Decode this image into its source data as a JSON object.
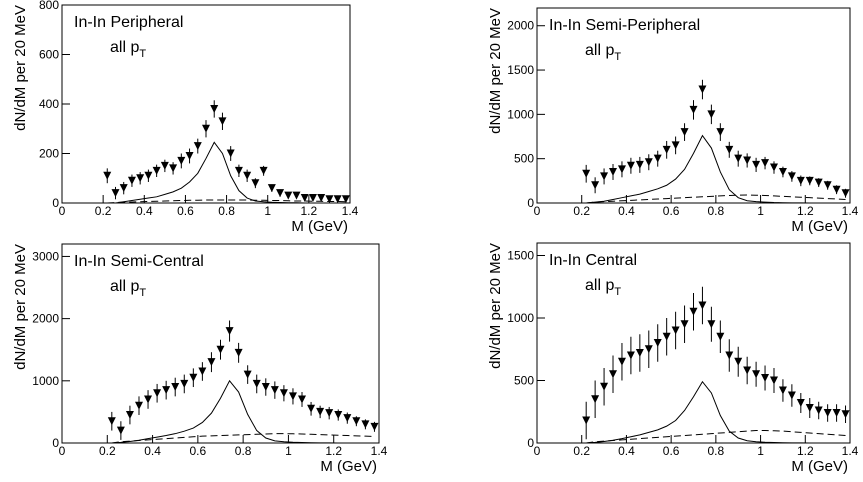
{
  "chart_data": [
    {
      "type": "scatter",
      "title": "In-In Peripheral",
      "subtitle": "all p",
      "subtitle_sub": "T",
      "ylabel": "dN/dM per 20 MeV",
      "xlabel": "M (GeV)",
      "xlim": [
        0,
        1.4
      ],
      "xticks": [
        0,
        0.2,
        0.4,
        0.6,
        0.8,
        1,
        1.2,
        1.4
      ],
      "ylim": [
        0,
        800
      ],
      "yticks": [
        0,
        200,
        400,
        600,
        800
      ],
      "x": [
        0.22,
        0.26,
        0.3,
        0.34,
        0.38,
        0.42,
        0.46,
        0.5,
        0.54,
        0.58,
        0.62,
        0.66,
        0.7,
        0.74,
        0.78,
        0.82,
        0.86,
        0.9,
        0.94,
        0.98,
        1.02,
        1.06,
        1.1,
        1.14,
        1.18,
        1.22,
        1.26,
        1.3,
        1.34,
        1.38
      ],
      "series": [
        {
          "style": "markers",
          "color": "#000000",
          "values": [
            110,
            40,
            60,
            90,
            100,
            110,
            130,
            150,
            140,
            170,
            190,
            230,
            300,
            380,
            330,
            200,
            130,
            110,
            80,
            130,
            60,
            40,
            30,
            30,
            20,
            20,
            20,
            15,
            15,
            15
          ],
          "errors": [
            30,
            25,
            25,
            25,
            25,
            25,
            25,
            25,
            25,
            30,
            30,
            30,
            35,
            35,
            35,
            30,
            25,
            25,
            20,
            20,
            15,
            15,
            12,
            12,
            10,
            10,
            10,
            8,
            8,
            8
          ]
        },
        {
          "style": "solid",
          "color": "#000000",
          "values": [
            0,
            0,
            5,
            10,
            15,
            20,
            25,
            35,
            45,
            60,
            85,
            120,
            180,
            245,
            200,
            110,
            50,
            20,
            8,
            5,
            3,
            2,
            1,
            1,
            0,
            0,
            0,
            0,
            0,
            0
          ]
        },
        {
          "style": "dashed",
          "color": "#000000",
          "values": [
            0,
            2,
            3,
            4,
            5,
            6,
            7,
            8,
            9,
            10,
            11,
            11,
            12,
            12,
            12,
            12,
            12,
            12,
            11,
            11,
            10,
            10,
            9,
            8,
            8,
            7,
            7,
            6,
            6,
            5
          ]
        }
      ]
    },
    {
      "type": "scatter",
      "title": "In-In Semi-Peripheral",
      "subtitle": "all p",
      "subtitle_sub": "T",
      "ylabel": "dN/dM per 20 MeV",
      "xlabel": "M (GeV)",
      "xlim": [
        0,
        1.4
      ],
      "xticks": [
        0,
        0.2,
        0.4,
        0.6,
        0.8,
        1,
        1.2,
        1.4
      ],
      "ylim": [
        0,
        2200
      ],
      "yticks": [
        0,
        500,
        1000,
        1500,
        2000
      ],
      "x": [
        0.22,
        0.26,
        0.3,
        0.34,
        0.38,
        0.42,
        0.46,
        0.5,
        0.54,
        0.58,
        0.62,
        0.66,
        0.7,
        0.74,
        0.78,
        0.82,
        0.86,
        0.9,
        0.94,
        0.98,
        1.02,
        1.06,
        1.1,
        1.14,
        1.18,
        1.22,
        1.26,
        1.3,
        1.34,
        1.38
      ],
      "series": [
        {
          "style": "markers",
          "color": "#000000",
          "values": [
            330,
            200,
            300,
            350,
            380,
            420,
            430,
            460,
            500,
            600,
            650,
            800,
            1050,
            1280,
            1000,
            800,
            600,
            500,
            480,
            430,
            450,
            400,
            350,
            300,
            250,
            250,
            230,
            200,
            150,
            110
          ],
          "errors": [
            100,
            90,
            90,
            90,
            90,
            90,
            90,
            90,
            90,
            100,
            100,
            100,
            110,
            110,
            110,
            100,
            90,
            90,
            80,
            80,
            70,
            70,
            60,
            60,
            60,
            50,
            50,
            50,
            50,
            50
          ]
        },
        {
          "style": "solid",
          "color": "#000000",
          "values": [
            0,
            10,
            20,
            40,
            60,
            80,
            100,
            130,
            160,
            200,
            270,
            380,
            560,
            760,
            620,
            350,
            150,
            60,
            25,
            15,
            10,
            5,
            3,
            2,
            1,
            0,
            0,
            0,
            0,
            0
          ]
        },
        {
          "style": "dashed",
          "color": "#000000",
          "values": [
            0,
            10,
            15,
            20,
            25,
            30,
            35,
            40,
            45,
            50,
            55,
            60,
            65,
            70,
            75,
            80,
            85,
            88,
            90,
            88,
            85,
            80,
            75,
            70,
            65,
            60,
            55,
            50,
            45,
            40
          ]
        }
      ]
    },
    {
      "type": "scatter",
      "title": "In-In Semi-Central",
      "subtitle": "all p",
      "subtitle_sub": "T",
      "ylabel": "dN/dM per 20 MeV",
      "xlabel": "M (GeV)",
      "xlim": [
        0,
        1.4
      ],
      "xticks": [
        0,
        0.2,
        0.4,
        0.6,
        0.8,
        1,
        1.2,
        1.4
      ],
      "ylim": [
        0,
        3200
      ],
      "yticks": [
        0,
        1000,
        2000,
        3000
      ],
      "x": [
        0.22,
        0.26,
        0.3,
        0.34,
        0.38,
        0.42,
        0.46,
        0.5,
        0.54,
        0.58,
        0.62,
        0.66,
        0.7,
        0.74,
        0.78,
        0.82,
        0.86,
        0.9,
        0.94,
        0.98,
        1.02,
        1.06,
        1.1,
        1.14,
        1.18,
        1.22,
        1.26,
        1.3,
        1.34,
        1.38
      ],
      "series": [
        {
          "style": "markers",
          "color": "#000000",
          "values": [
            350,
            200,
            450,
            600,
            700,
            800,
            850,
            900,
            950,
            1050,
            1150,
            1300,
            1500,
            1800,
            1450,
            1100,
            950,
            900,
            850,
            800,
            750,
            700,
            550,
            500,
            480,
            450,
            400,
            350,
            300,
            260
          ],
          "errors": [
            150,
            150,
            150,
            150,
            150,
            150,
            150,
            150,
            150,
            150,
            150,
            160,
            160,
            170,
            160,
            150,
            150,
            140,
            140,
            130,
            130,
            120,
            110,
            100,
            100,
            90,
            90,
            80,
            80,
            80
          ]
        },
        {
          "style": "solid",
          "color": "#000000",
          "values": [
            0,
            10,
            25,
            45,
            70,
            95,
            120,
            150,
            190,
            240,
            330,
            480,
            720,
            1000,
            820,
            460,
            200,
            80,
            35,
            20,
            12,
            8,
            5,
            3,
            2,
            1,
            0,
            0,
            0,
            0
          ]
        },
        {
          "style": "dashed",
          "color": "#000000",
          "values": [
            0,
            20,
            30,
            40,
            50,
            60,
            70,
            80,
            90,
            100,
            110,
            115,
            120,
            125,
            130,
            135,
            140,
            145,
            150,
            150,
            148,
            145,
            140,
            135,
            130,
            125,
            120,
            115,
            110,
            105
          ]
        }
      ]
    },
    {
      "type": "scatter",
      "title": "In-In Central",
      "subtitle": "all p",
      "subtitle_sub": "T",
      "ylabel": "dN/dM per 20 MeV",
      "xlabel": "M (GeV)",
      "xlim": [
        0,
        1.4
      ],
      "xticks": [
        0,
        0.2,
        0.4,
        0.6,
        0.8,
        1,
        1.2,
        1.4
      ],
      "ylim": [
        0,
        1600
      ],
      "yticks": [
        0,
        500,
        1000,
        1500
      ],
      "x": [
        0.22,
        0.26,
        0.3,
        0.34,
        0.38,
        0.42,
        0.46,
        0.5,
        0.54,
        0.58,
        0.62,
        0.66,
        0.7,
        0.74,
        0.78,
        0.82,
        0.86,
        0.9,
        0.94,
        0.98,
        1.02,
        1.06,
        1.1,
        1.14,
        1.18,
        1.22,
        1.26,
        1.3,
        1.34,
        1.38
      ],
      "series": [
        {
          "style": "markers",
          "color": "#000000",
          "values": [
            180,
            350,
            450,
            550,
            650,
            700,
            720,
            750,
            800,
            850,
            900,
            950,
            1050,
            1100,
            950,
            850,
            700,
            650,
            580,
            550,
            520,
            500,
            420,
            380,
            320,
            280,
            260,
            240,
            240,
            230
          ],
          "errors": [
            150,
            150,
            150,
            150,
            150,
            150,
            150,
            150,
            150,
            150,
            150,
            150,
            150,
            150,
            140,
            130,
            130,
            120,
            110,
            100,
            100,
            100,
            90,
            90,
            80,
            80,
            70,
            70,
            70,
            70
          ]
        },
        {
          "style": "solid",
          "color": "#000000",
          "values": [
            0,
            5,
            12,
            22,
            35,
            50,
            65,
            85,
            105,
            135,
            180,
            260,
            370,
            490,
            400,
            220,
            95,
            40,
            18,
            10,
            6,
            4,
            2,
            1,
            1,
            0,
            0,
            0,
            0,
            0
          ]
        },
        {
          "style": "dashed",
          "color": "#000000",
          "values": [
            0,
            10,
            15,
            20,
            25,
            30,
            35,
            40,
            45,
            50,
            55,
            60,
            65,
            70,
            75,
            80,
            85,
            90,
            95,
            100,
            100,
            98,
            95,
            90,
            85,
            80,
            75,
            70,
            65,
            60
          ]
        }
      ]
    }
  ]
}
